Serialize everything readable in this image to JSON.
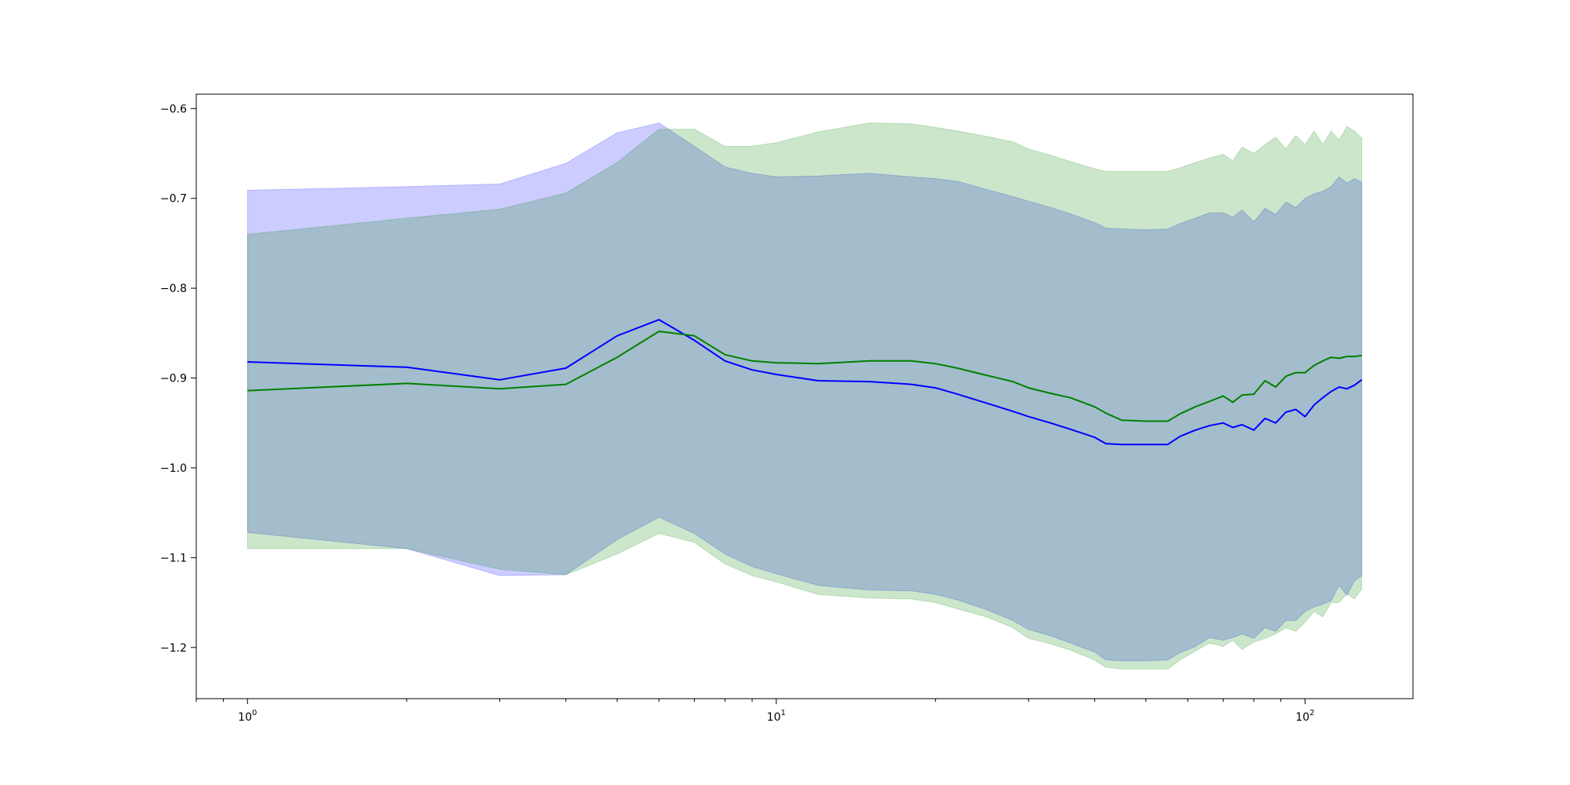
{
  "chart_data": {
    "type": "line",
    "title": "",
    "xlabel": "",
    "ylabel": "",
    "xscale": "log",
    "xlim": [
      0.8,
      160
    ],
    "ylim": [
      -1.257,
      -0.584
    ],
    "grid": false,
    "legend": "none",
    "xticks": [
      {
        "value": 1,
        "base": "10",
        "exp": "0"
      },
      {
        "value": 10,
        "base": "10",
        "exp": "1"
      },
      {
        "value": 100,
        "base": "10",
        "exp": "2"
      }
    ],
    "yticks": [
      {
        "value": -0.6,
        "label": "−0.6"
      },
      {
        "value": -0.7,
        "label": "−0.7"
      },
      {
        "value": -0.8,
        "label": "−0.8"
      },
      {
        "value": -0.9,
        "label": "−0.9"
      },
      {
        "value": -1.0,
        "label": "−1.0"
      },
      {
        "value": -1.1,
        "label": "−1.1"
      },
      {
        "value": -1.2,
        "label": "−1.2"
      }
    ],
    "series": [
      {
        "color": "#0000ff",
        "band_color": "#0000ff",
        "band_opacity": 0.2,
        "x": [
          1,
          2,
          3,
          4,
          5,
          6,
          7,
          8,
          9,
          10,
          12,
          15,
          18,
          20,
          22,
          25,
          28,
          30,
          33,
          36,
          40,
          42,
          45,
          50,
          55,
          58,
          62,
          66,
          70,
          73,
          76,
          80,
          84,
          88,
          92,
          96,
          100,
          104,
          108,
          112,
          116,
          120,
          124,
          128
        ],
        "y": [
          -0.882,
          -0.888,
          -0.902,
          -0.889,
          -0.853,
          -0.835,
          -0.858,
          -0.881,
          -0.891,
          -0.896,
          -0.903,
          -0.904,
          -0.907,
          -0.911,
          -0.918,
          -0.928,
          -0.937,
          -0.943,
          -0.95,
          -0.957,
          -0.966,
          -0.973,
          -0.974,
          -0.974,
          -0.974,
          -0.965,
          -0.958,
          -0.953,
          -0.95,
          -0.955,
          -0.952,
          -0.958,
          -0.945,
          -0.95,
          -0.938,
          -0.935,
          -0.943,
          -0.93,
          -0.922,
          -0.915,
          -0.91,
          -0.912,
          -0.908,
          -0.902
        ],
        "upper": [
          -0.691,
          -0.687,
          -0.684,
          -0.661,
          -0.627,
          -0.616,
          -0.642,
          -0.665,
          -0.672,
          -0.676,
          -0.675,
          -0.672,
          -0.676,
          -0.678,
          -0.681,
          -0.69,
          -0.698,
          -0.703,
          -0.71,
          -0.717,
          -0.727,
          -0.733,
          -0.734,
          -0.735,
          -0.734,
          -0.728,
          -0.722,
          -0.716,
          -0.716,
          -0.721,
          -0.713,
          -0.726,
          -0.711,
          -0.718,
          -0.704,
          -0.71,
          -0.7,
          -0.695,
          -0.692,
          -0.687,
          -0.676,
          -0.683,
          -0.678,
          -0.682
        ],
        "lower": [
          -1.072,
          -1.09,
          -1.12,
          -1.119,
          -1.08,
          -1.055,
          -1.073,
          -1.096,
          -1.11,
          -1.118,
          -1.131,
          -1.136,
          -1.137,
          -1.141,
          -1.147,
          -1.158,
          -1.17,
          -1.18,
          -1.187,
          -1.195,
          -1.205,
          -1.214,
          -1.215,
          -1.215,
          -1.214,
          -1.206,
          -1.199,
          -1.189,
          -1.192,
          -1.189,
          -1.185,
          -1.19,
          -1.178,
          -1.182,
          -1.17,
          -1.17,
          -1.16,
          -1.155,
          -1.152,
          -1.148,
          -1.131,
          -1.142,
          -1.126,
          -1.12
        ]
      },
      {
        "color": "#008000",
        "band_color": "#008000",
        "band_opacity": 0.2,
        "x": [
          1,
          2,
          3,
          4,
          5,
          6,
          7,
          8,
          9,
          10,
          12,
          15,
          18,
          20,
          22,
          25,
          28,
          30,
          33,
          36,
          40,
          42,
          45,
          50,
          55,
          58,
          62,
          66,
          70,
          73,
          76,
          80,
          84,
          88,
          92,
          96,
          100,
          104,
          108,
          112,
          116,
          120,
          124,
          128
        ],
        "y": [
          -0.914,
          -0.906,
          -0.912,
          -0.907,
          -0.877,
          -0.848,
          -0.853,
          -0.874,
          -0.881,
          -0.883,
          -0.884,
          -0.881,
          -0.881,
          -0.884,
          -0.889,
          -0.897,
          -0.904,
          -0.911,
          -0.917,
          -0.922,
          -0.932,
          -0.939,
          -0.947,
          -0.948,
          -0.948,
          -0.94,
          -0.932,
          -0.926,
          -0.92,
          -0.927,
          -0.919,
          -0.918,
          -0.903,
          -0.91,
          -0.898,
          -0.894,
          -0.894,
          -0.886,
          -0.881,
          -0.877,
          -0.878,
          -0.876,
          -0.876,
          -0.875
        ],
        "upper": [
          -0.74,
          -0.722,
          -0.712,
          -0.694,
          -0.66,
          -0.623,
          -0.623,
          -0.642,
          -0.642,
          -0.638,
          -0.626,
          -0.616,
          -0.617,
          -0.621,
          -0.625,
          -0.631,
          -0.637,
          -0.645,
          -0.652,
          -0.659,
          -0.667,
          -0.67,
          -0.67,
          -0.67,
          -0.67,
          -0.666,
          -0.66,
          -0.655,
          -0.651,
          -0.658,
          -0.643,
          -0.65,
          -0.64,
          -0.632,
          -0.645,
          -0.63,
          -0.64,
          -0.625,
          -0.64,
          -0.625,
          -0.635,
          -0.62,
          -0.625,
          -0.633
        ],
        "lower": [
          -1.09,
          -1.09,
          -1.113,
          -1.119,
          -1.096,
          -1.073,
          -1.083,
          -1.107,
          -1.12,
          -1.127,
          -1.141,
          -1.145,
          -1.146,
          -1.15,
          -1.157,
          -1.166,
          -1.178,
          -1.19,
          -1.196,
          -1.203,
          -1.214,
          -1.222,
          -1.224,
          -1.224,
          -1.224,
          -1.214,
          -1.204,
          -1.195,
          -1.199,
          -1.192,
          -1.202,
          -1.194,
          -1.19,
          -1.185,
          -1.178,
          -1.182,
          -1.172,
          -1.16,
          -1.166,
          -1.15,
          -1.15,
          -1.14,
          -1.146,
          -1.135
        ]
      }
    ]
  }
}
